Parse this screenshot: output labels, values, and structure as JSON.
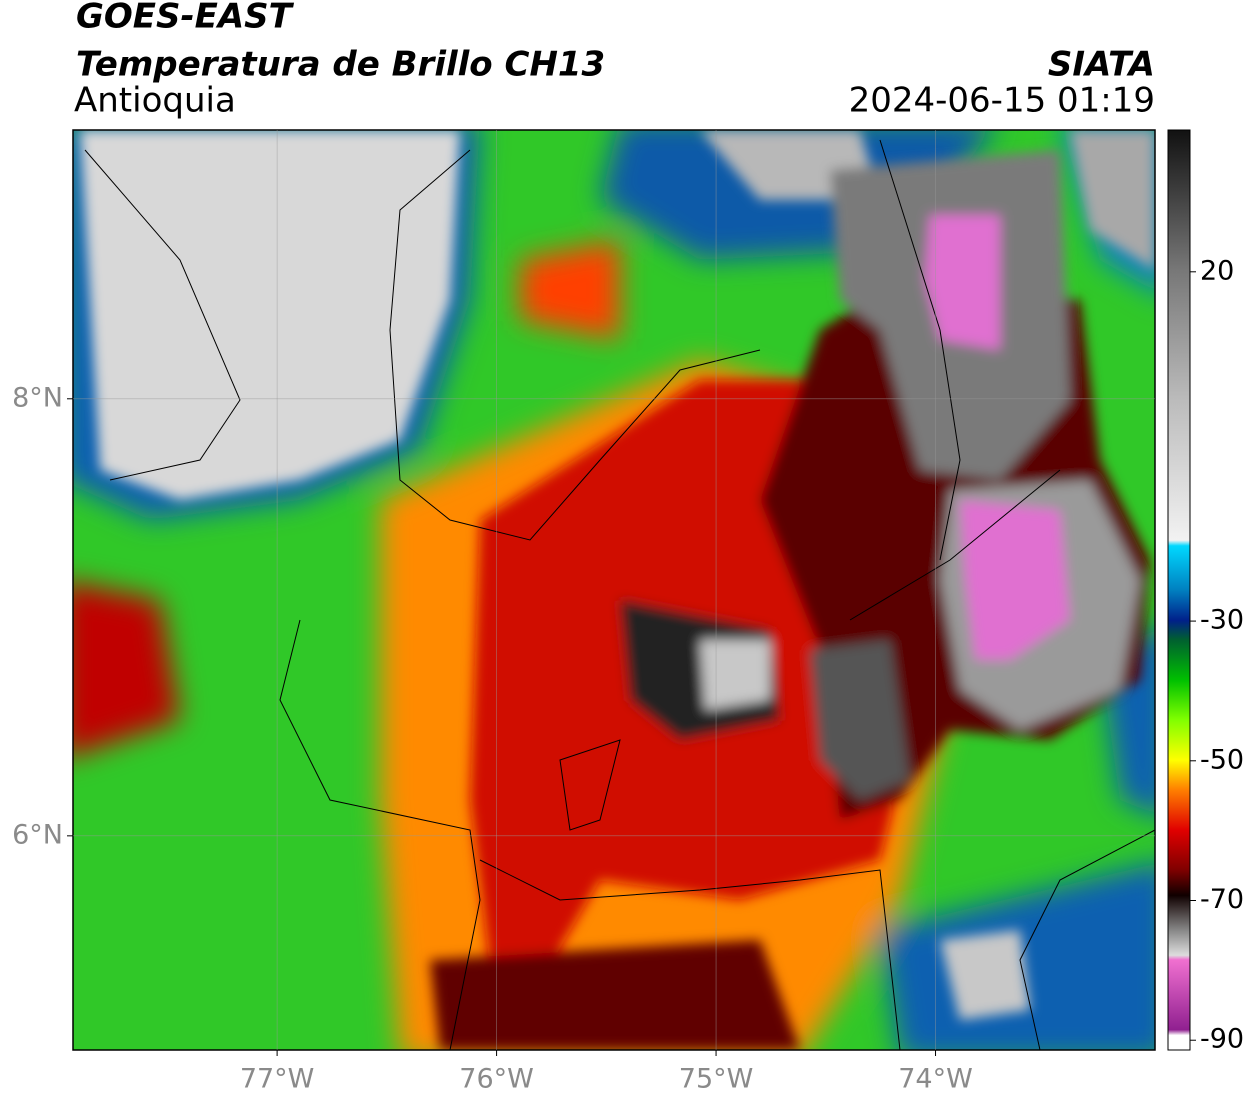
{
  "chart_data": {
    "type": "map",
    "title": "GOES-EAST",
    "subtitle": "Temperatura de Brillo CH13",
    "region": "Antioquia",
    "source": "SIATA",
    "timestamp": "2024-06-15 01:19",
    "xlim": [
      -77.93,
      -73.0
    ],
    "ylim": [
      5.02,
      9.23
    ],
    "xticks": [
      {
        "value": -77,
        "label": "77°W"
      },
      {
        "value": -76,
        "label": "76°W"
      },
      {
        "value": -75,
        "label": "75°W"
      },
      {
        "value": -74,
        "label": "74°W"
      }
    ],
    "yticks": [
      {
        "value": 8,
        "label": "8°N"
      },
      {
        "value": 6,
        "label": "6°N"
      }
    ],
    "grid": true,
    "colorbar": {
      "lim": [
        -91.4,
        40.3
      ],
      "ticks": [
        20,
        -30,
        -50,
        -70,
        -90
      ]
    }
  }
}
